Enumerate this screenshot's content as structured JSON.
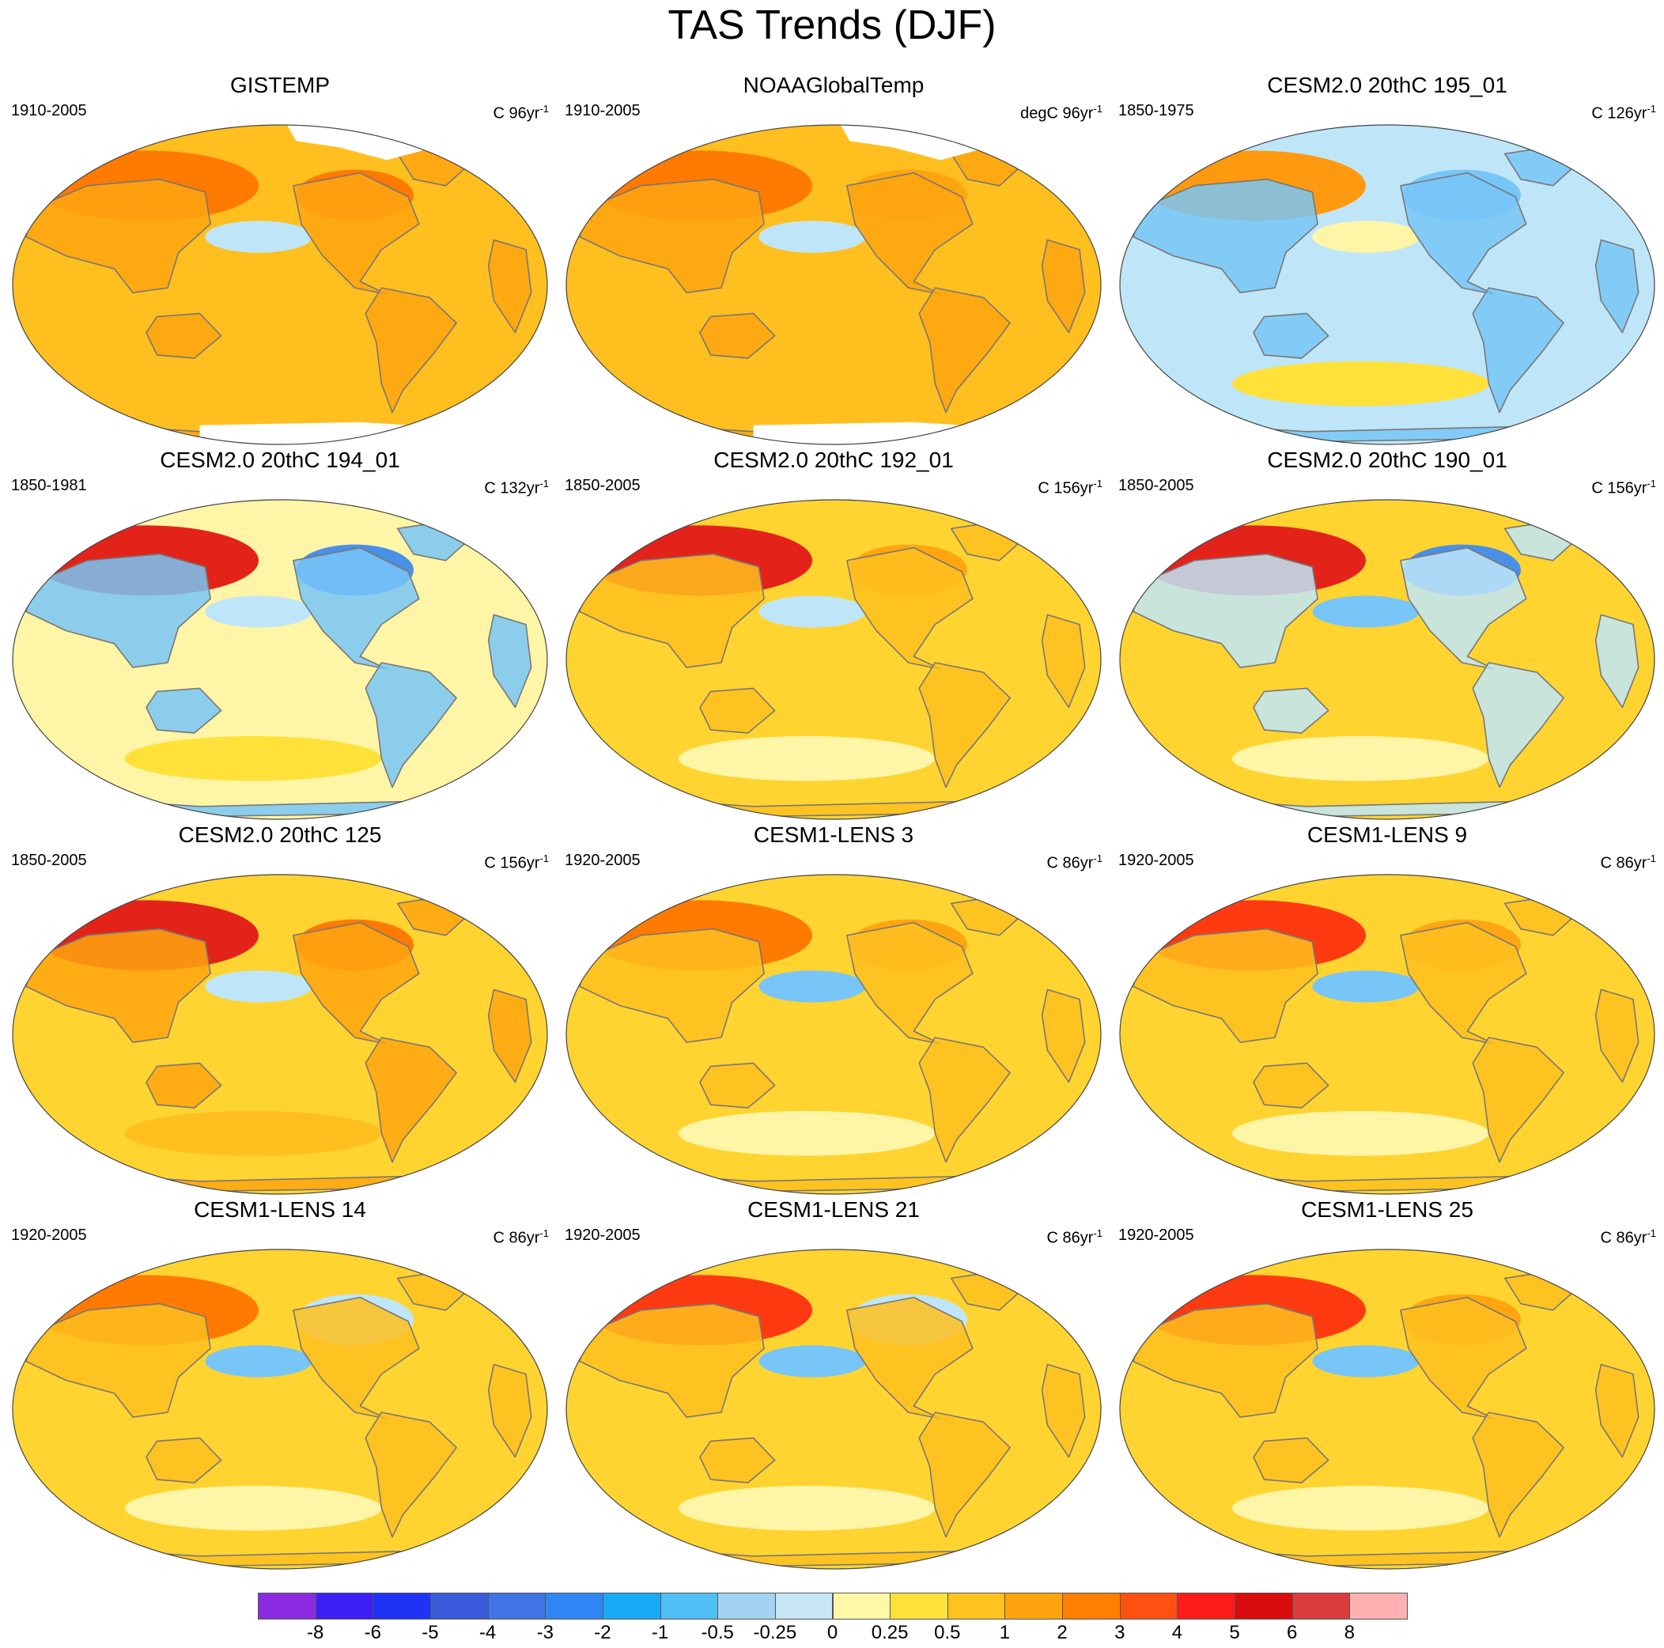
{
  "title": "TAS Trends (DJF)",
  "panels": [
    {
      "title": "GISTEMP",
      "period": "1910-2005",
      "units": "C 96yr",
      "units_sup": "-1",
      "land_color": "#ffa510",
      "ocean_color": "#ffbf1f",
      "patches": [
        {
          "c": "#ff7a00"
        },
        {
          "c": "#bfe6f8"
        },
        {
          "c": "#ff7a00"
        },
        {
          "c": "#ffbf1f"
        }
      ],
      "missing_north": true,
      "missing_south": true
    },
    {
      "title": "NOAAGlobalTemp",
      "period": "1910-2005",
      "units": "degC 96yr",
      "units_sup": "-1",
      "land_color": "#ffa510",
      "ocean_color": "#ffbf1f",
      "patches": [
        {
          "c": "#ff7a00"
        },
        {
          "c": "#bfe6f8"
        },
        {
          "c": "#ffa510"
        },
        {
          "c": "#ffbf1f"
        }
      ],
      "missing_north": true,
      "missing_south": true
    },
    {
      "title": "CESM2.0 20thC 195_01",
      "period": "1850-1975",
      "units": "C 126yr",
      "units_sup": "-1",
      "land_color": "#78c5f7",
      "ocean_color": "#bfe6f8",
      "patches": [
        {
          "c": "#ff9a10"
        },
        {
          "c": "#fff5a6"
        },
        {
          "c": "#78c5f7"
        },
        {
          "c": "#ffe13a"
        }
      ],
      "missing_north": false,
      "missing_south": false
    },
    {
      "title": "CESM2.0 20thC 194_01",
      "period": "1850-1981",
      "units": "C 132yr",
      "units_sup": "-1",
      "land_color": "#78c5f7",
      "ocean_color": "#fff5a6",
      "patches": [
        {
          "c": "#e3231a"
        },
        {
          "c": "#bfe6f8"
        },
        {
          "c": "#4a8fe8"
        },
        {
          "c": "#ffe13a"
        }
      ],
      "missing_north": false,
      "missing_south": false
    },
    {
      "title": "CESM2.0 20thC 192_01",
      "period": "1850-2005",
      "units": "C 156yr",
      "units_sup": "-1",
      "land_color": "#ffbf1f",
      "ocean_color": "#ffd430",
      "patches": [
        {
          "c": "#e3231a"
        },
        {
          "c": "#bfe6f8"
        },
        {
          "c": "#ffa510"
        },
        {
          "c": "#fff5a6"
        }
      ],
      "missing_north": false,
      "missing_south": false
    },
    {
      "title": "CESM2.0 20thC 190_01",
      "period": "1850-2005",
      "units": "C 156yr",
      "units_sup": "-1",
      "land_color": "#bfe6f8",
      "ocean_color": "#ffd430",
      "patches": [
        {
          "c": "#e3231a"
        },
        {
          "c": "#78c5f7"
        },
        {
          "c": "#4a8fe8"
        },
        {
          "c": "#fff5a6"
        }
      ],
      "missing_north": false,
      "missing_south": false
    },
    {
      "title": "CESM2.0 20thC 125",
      "period": "1850-2005",
      "units": "C 156yr",
      "units_sup": "-1",
      "land_color": "#ffa510",
      "ocean_color": "#ffd430",
      "patches": [
        {
          "c": "#e3231a"
        },
        {
          "c": "#bfe6f8"
        },
        {
          "c": "#ff7a00"
        },
        {
          "c": "#ffbf1f"
        }
      ],
      "missing_north": false,
      "missing_south": false
    },
    {
      "title": "CESM1-LENS 3",
      "period": "1920-2005",
      "units": "C 86yr",
      "units_sup": "-1",
      "land_color": "#ffbf1f",
      "ocean_color": "#ffd430",
      "patches": [
        {
          "c": "#ff7a00"
        },
        {
          "c": "#78c5f7"
        },
        {
          "c": "#ffa510"
        },
        {
          "c": "#fff5a6"
        }
      ],
      "missing_north": false,
      "missing_south": false
    },
    {
      "title": "CESM1-LENS 9",
      "period": "1920-2005",
      "units": "C 86yr",
      "units_sup": "-1",
      "land_color": "#ffbf1f",
      "ocean_color": "#ffd430",
      "patches": [
        {
          "c": "#ff3a10"
        },
        {
          "c": "#78c5f7"
        },
        {
          "c": "#ffa510"
        },
        {
          "c": "#fff5a6"
        }
      ],
      "missing_north": false,
      "missing_south": false
    },
    {
      "title": "CESM1-LENS 14",
      "period": "1920-2005",
      "units": "C 86yr",
      "units_sup": "-1",
      "land_color": "#ffbf1f",
      "ocean_color": "#ffd430",
      "patches": [
        {
          "c": "#ff7a00"
        },
        {
          "c": "#78c5f7"
        },
        {
          "c": "#bfe6f8"
        },
        {
          "c": "#fff5a6"
        }
      ],
      "missing_north": false,
      "missing_south": false
    },
    {
      "title": "CESM1-LENS 21",
      "period": "1920-2005",
      "units": "C 86yr",
      "units_sup": "-1",
      "land_color": "#ffbf1f",
      "ocean_color": "#ffd430",
      "patches": [
        {
          "c": "#ff3a10"
        },
        {
          "c": "#78c5f7"
        },
        {
          "c": "#bfe6f8"
        },
        {
          "c": "#fff5a6"
        }
      ],
      "missing_north": false,
      "missing_south": false
    },
    {
      "title": "CESM1-LENS 25",
      "period": "1920-2005",
      "units": "C 86yr",
      "units_sup": "-1",
      "land_color": "#ffbf1f",
      "ocean_color": "#ffd430",
      "patches": [
        {
          "c": "#ff3a10"
        },
        {
          "c": "#78c5f7"
        },
        {
          "c": "#ffa510"
        },
        {
          "c": "#fff5a6"
        }
      ],
      "missing_north": false,
      "missing_south": false
    }
  ],
  "colorbar": {
    "colors": [
      "#8a2be2",
      "#3b1ff5",
      "#1e33f5",
      "#3a5bdc",
      "#3f73e6",
      "#2e86f5",
      "#1aa9f5",
      "#50bff5",
      "#a3d3f0",
      "#c6e6f5",
      "#fff8a8",
      "#ffe13a",
      "#ffc21e",
      "#ffa30f",
      "#ff7f00",
      "#ff5012",
      "#ff1a1a",
      "#d90d0d",
      "#d93c3c",
      "#ffb0b0"
    ],
    "labels": [
      "-8",
      "-6",
      "-5",
      "-4",
      "-3",
      "-2",
      "-1",
      "-0.5",
      "-0.25",
      "0",
      "0.25",
      "0.5",
      "1",
      "2",
      "3",
      "4",
      "5",
      "6",
      "8"
    ]
  }
}
